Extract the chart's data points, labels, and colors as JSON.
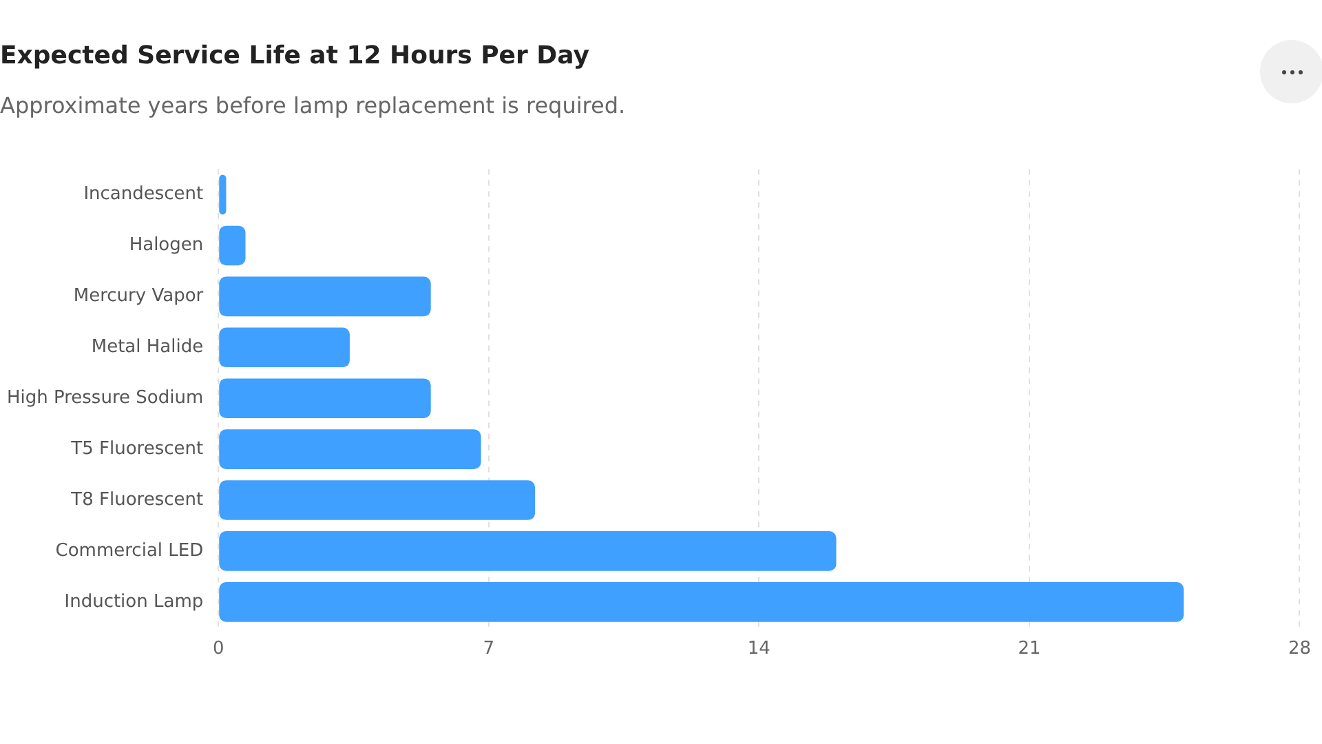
{
  "chart_data": {
    "type": "bar",
    "orientation": "horizontal",
    "title": "Expected Service Life at 12 Hours Per Day",
    "subtitle": "Approximate years before lamp replacement is required.",
    "categories": [
      "Incandescent",
      "Halogen",
      "Mercury Vapor",
      "Metal Halide",
      "High Pressure Sodium",
      "T5 Fluorescent",
      "T8 Fluorescent",
      "Commercial LED",
      "Induction Lamp"
    ],
    "values": [
      0.2,
      0.7,
      5.5,
      3.4,
      5.5,
      6.8,
      8.2,
      16,
      25
    ],
    "color": "#3fa0ff",
    "xlim": [
      0,
      28
    ],
    "xticks": [
      0,
      7,
      14,
      21,
      28
    ],
    "grid": "x",
    "legend": false
  }
}
